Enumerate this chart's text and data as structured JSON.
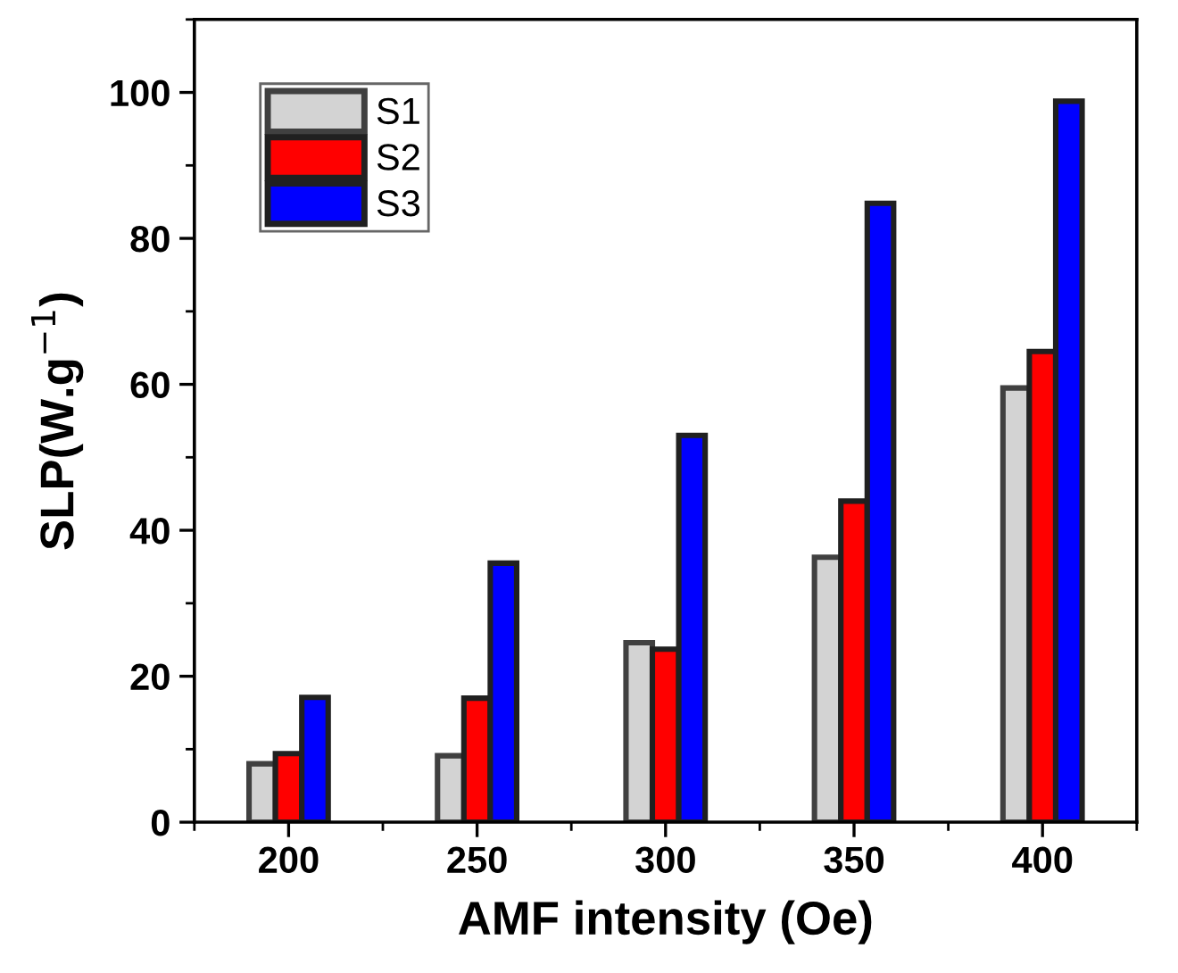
{
  "chart_data": {
    "type": "bar",
    "xlabel": "AMF intensity (Oe)",
    "ylabel": "SLP(W.g$^{−1}$)",
    "categories": [
      "200",
      "250",
      "300",
      "350",
      "400"
    ],
    "series": [
      {
        "name": "S1",
        "color": "#d3d3d3",
        "values": [
          8.0,
          9.1,
          24.6,
          36.3,
          59.5
        ]
      },
      {
        "name": "S2",
        "color": "#ff0000",
        "values": [
          9.4,
          17.0,
          23.7,
          44.0,
          64.5
        ]
      },
      {
        "name": "S3",
        "color": "#0000ff",
        "values": [
          17.1,
          35.5,
          53.0,
          84.8,
          98.8
        ]
      }
    ],
    "ylim": [
      0,
      110
    ],
    "yticks": [
      0,
      20,
      40,
      60,
      80,
      100
    ],
    "grid": false,
    "legend": "top left"
  }
}
